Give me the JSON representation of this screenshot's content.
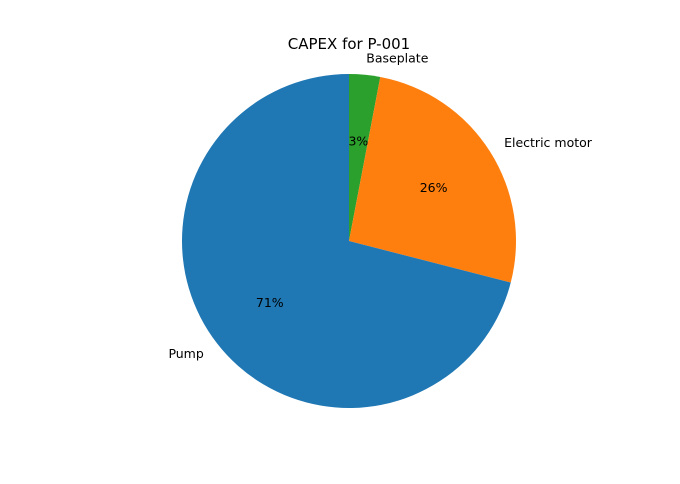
{
  "chart_data": {
    "type": "pie",
    "title": "CAPEX for P-001",
    "start_angle_deg": 90,
    "direction": "clockwise",
    "slices": [
      {
        "label": "Baseplate",
        "value": 3,
        "pct_label": "3%",
        "color": "#2ca02c"
      },
      {
        "label": "Electric motor",
        "value": 26,
        "pct_label": "26%",
        "color": "#ff7f0e"
      },
      {
        "label": "Pump",
        "value": 71,
        "pct_label": "71%",
        "color": "#1f77b4"
      }
    ]
  }
}
